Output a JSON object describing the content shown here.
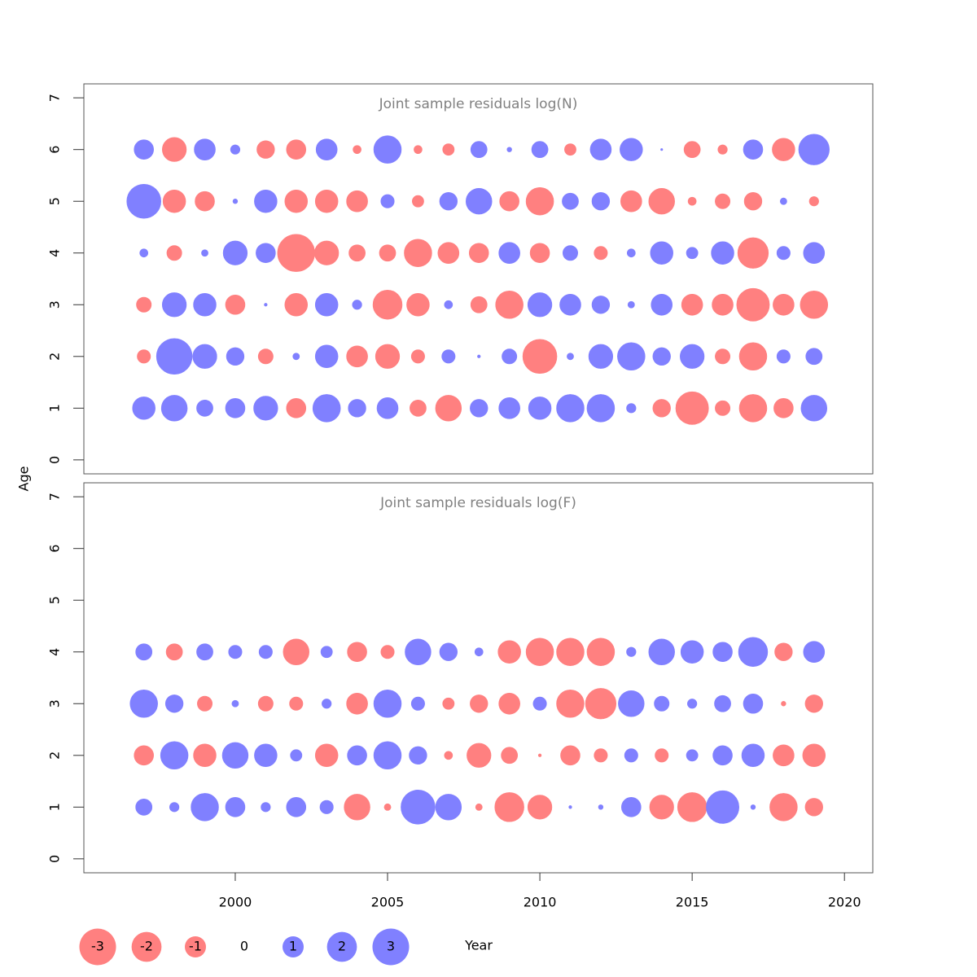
{
  "chart_data": [
    {
      "type": "bubble",
      "title": "Joint sample residuals log(N)",
      "x": [
        1997,
        1998,
        1999,
        2000,
        2001,
        2002,
        2003,
        2004,
        2005,
        2006,
        2007,
        2008,
        2009,
        2010,
        2011,
        2012,
        2013,
        2014,
        2015,
        2016,
        2017,
        2018,
        2019
      ],
      "y": [
        1,
        2,
        3,
        4,
        5,
        6
      ],
      "values": [
        [
          1.15,
          1.5,
          0.6,
          0.85,
          1.3,
          -0.85,
          1.7,
          0.7,
          1.0,
          -0.6,
          -1.5,
          0.7,
          1.0,
          1.15,
          1.7,
          1.7,
          0.2,
          -0.7,
          -2.4,
          -0.5,
          -1.7,
          -0.85,
          1.5
        ],
        [
          -0.4,
          2.85,
          1.3,
          0.7,
          -0.5,
          0.1,
          1.15,
          -1.0,
          -1.3,
          -0.4,
          0.4,
          0.02,
          0.5,
          -2.6,
          0.1,
          1.3,
          1.7,
          0.7,
          1.3,
          -0.5,
          -1.7,
          0.4,
          0.6
        ],
        [
          -0.5,
          1.3,
          1.15,
          -0.85,
          0.02,
          -1.15,
          1.15,
          0.2,
          -1.9,
          -1.15,
          0.15,
          -0.6,
          -1.7,
          1.3,
          1.0,
          0.7,
          0.1,
          1.0,
          -1.0,
          -1.0,
          -2.4,
          -1.0,
          -1.7
        ],
        [
          0.15,
          -0.5,
          0.1,
          1.3,
          0.85,
          -3.1,
          -1.3,
          -0.6,
          -0.6,
          -1.7,
          -1.0,
          -0.85,
          1.0,
          -0.85,
          0.5,
          -0.4,
          0.15,
          1.15,
          0.3,
          1.15,
          -2.1,
          0.4,
          1.0
        ],
        [
          2.6,
          -1.15,
          -0.85,
          0.05,
          1.15,
          -1.15,
          -1.15,
          -1.0,
          0.4,
          -0.3,
          0.7,
          1.5,
          -0.85,
          -1.7,
          0.6,
          0.7,
          -1.0,
          -1.5,
          -0.15,
          -0.5,
          -0.7,
          0.1,
          -0.2
        ],
        [
          0.85,
          -1.3,
          1.0,
          0.2,
          -0.7,
          -0.85,
          1.0,
          -0.15,
          1.7,
          -0.15,
          -0.3,
          0.6,
          0.05,
          0.6,
          -0.3,
          1.0,
          1.15,
          0.01,
          -0.6,
          -0.2,
          0.85,
          -1.15,
          2.1
        ]
      ],
      "positive_color": "#8080ff",
      "negative_color": "#ff8080",
      "xlim": [
        1995.03,
        2020.93
      ],
      "ylim": [
        -0.27,
        7.27
      ],
      "yticks": [
        0,
        1,
        2,
        3,
        4,
        5,
        6,
        7
      ]
    },
    {
      "type": "bubble",
      "title": "Joint sample residuals log(F)",
      "x": [
        1997,
        1998,
        1999,
        2000,
        2001,
        2002,
        2003,
        2004,
        2005,
        2006,
        2007,
        2008,
        2009,
        2010,
        2011,
        2012,
        2013,
        2014,
        2015,
        2016,
        2017,
        2018,
        2019
      ],
      "y": [
        1,
        2,
        3,
        4
      ],
      "values": [
        [
          0.6,
          0.2,
          1.7,
          0.85,
          0.2,
          0.85,
          0.4,
          -1.5,
          -0.1,
          2.6,
          1.5,
          -0.1,
          -1.9,
          -1.3,
          0.02,
          0.05,
          0.85,
          -1.3,
          -1.9,
          2.4,
          0.05,
          -1.7,
          -0.7
        ],
        [
          -0.85,
          1.7,
          -1.15,
          1.5,
          1.15,
          0.3,
          -1.15,
          0.85,
          1.7,
          0.7,
          -0.15,
          -1.3,
          -0.6,
          -0.02,
          -0.85,
          -0.4,
          0.4,
          -0.4,
          0.3,
          0.85,
          1.15,
          -1.0,
          -1.15
        ],
        [
          1.7,
          0.7,
          -0.5,
          0.1,
          -0.5,
          -0.4,
          0.2,
          -1.0,
          1.7,
          0.4,
          -0.3,
          -0.7,
          -1.0,
          0.4,
          -1.7,
          -2.1,
          1.5,
          0.5,
          0.2,
          0.6,
          0.85,
          -0.05,
          -0.7
        ],
        [
          0.6,
          -0.6,
          0.6,
          0.4,
          0.4,
          -1.5,
          0.3,
          -0.85,
          -0.4,
          1.5,
          0.7,
          0.15,
          -1.15,
          -1.7,
          -1.7,
          -1.7,
          0.2,
          1.5,
          1.15,
          0.85,
          1.9,
          -0.7,
          1.0
        ]
      ],
      "positive_color": "#8080ff",
      "negative_color": "#ff8080",
      "xlim": [
        1995.03,
        2020.93
      ],
      "ylim": [
        -0.27,
        7.27
      ],
      "yticks": [
        0,
        1,
        2,
        3,
        4,
        5,
        6,
        7
      ],
      "xticks": [
        2000,
        2005,
        2010,
        2015,
        2020
      ]
    }
  ],
  "xlabel": "Year",
  "ylabel": "Age",
  "legend": {
    "values": [
      -3,
      -2,
      -1,
      0,
      1,
      2,
      3
    ]
  }
}
